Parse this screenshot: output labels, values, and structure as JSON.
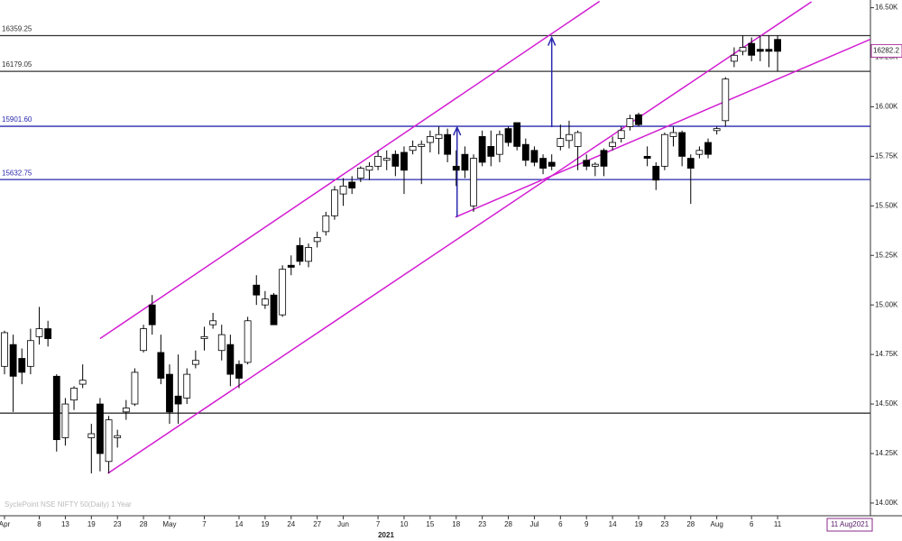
{
  "chart_data": {
    "type": "candlestick",
    "x_label": "2021",
    "watermark": "SyclePoint NSE NIFTY 50(Daily) 1 Year",
    "last_price": 16282.2,
    "date_box": "11 Aug2021",
    "categories": [
      "Apr",
      null,
      null,
      null,
      "8",
      null,
      null,
      "13",
      null,
      null,
      "19",
      null,
      null,
      "23",
      null,
      null,
      "28",
      null,
      null,
      "May",
      null,
      null,
      null,
      "7",
      null,
      null,
      null,
      "14",
      null,
      null,
      "19",
      null,
      null,
      "24",
      null,
      null,
      "27",
      null,
      null,
      "Jun",
      null,
      null,
      null,
      "7",
      null,
      null,
      "10",
      null,
      null,
      "15",
      null,
      null,
      "18",
      null,
      null,
      "23",
      null,
      null,
      "28",
      null,
      null,
      "Jul",
      null,
      null,
      "6",
      null,
      null,
      "9",
      null,
      null,
      "14",
      null,
      null,
      "19",
      null,
      null,
      "23",
      null,
      null,
      "28",
      null,
      null,
      "Aug",
      null,
      null,
      null,
      "6",
      null,
      null,
      "11"
    ],
    "open": [
      14690,
      14800,
      14730,
      14690,
      14840,
      14880,
      14640,
      14330,
      14520,
      14600,
      14330,
      14500,
      14210,
      14330,
      14460,
      14500,
      14770,
      15000,
      14760,
      14650,
      14540,
      14530,
      14700,
      14830,
      14900,
      14770,
      14800,
      14700,
      14710,
      15100,
      15000,
      15050,
      14950,
      15200,
      15300,
      15220,
      15320,
      15370,
      15450,
      15560,
      15620,
      15640,
      15680,
      15700,
      15730,
      15760,
      15770,
      15780,
      15800,
      15820,
      15840,
      15860,
      15700,
      15760,
      15500,
      15850,
      15800,
      15760,
      15890,
      15920,
      15810,
      15780,
      15740,
      15720,
      15800,
      15830,
      15800,
      15730,
      15700,
      15780,
      15800,
      15840,
      15900,
      15960,
      15750,
      15700,
      15700,
      15850,
      15870,
      15740,
      15760,
      15820,
      15880,
      15930,
      16230,
      16280,
      16320,
      16290,
      16290,
      16340
    ],
    "high": [
      14870,
      14850,
      14780,
      14880,
      14990,
      14920,
      14650,
      14530,
      14590,
      14700,
      14400,
      14530,
      14440,
      14370,
      14520,
      14680,
      14900,
      15050,
      14850,
      14700,
      14750,
      14680,
      14770,
      14890,
      14960,
      14900,
      14850,
      14720,
      14940,
      15150,
      15070,
      15060,
      15200,
      15250,
      15340,
      15310,
      15370,
      15470,
      15600,
      15640,
      15650,
      15700,
      15720,
      15780,
      15780,
      15780,
      15800,
      15830,
      15830,
      15880,
      15900,
      15890,
      15780,
      15800,
      15760,
      15880,
      15880,
      15880,
      15900,
      15920,
      15840,
      15800,
      15760,
      15760,
      15910,
      15930,
      15880,
      15760,
      15720,
      15790,
      15850,
      15900,
      15960,
      15970,
      15800,
      15720,
      15870,
      15900,
      15880,
      15760,
      15800,
      15840,
      15900,
      16150,
      16300,
      16360,
      16350,
      16360,
      16360,
      16360
    ],
    "low": [
      14650,
      14460,
      14600,
      14650,
      14800,
      14790,
      14260,
      14290,
      14470,
      14580,
      14150,
      14160,
      14150,
      14280,
      14420,
      14490,
      14760,
      14850,
      14600,
      14400,
      14400,
      14500,
      14680,
      14770,
      14880,
      14720,
      14590,
      14580,
      14700,
      15000,
      14980,
      14900,
      14940,
      15150,
      15200,
      15190,
      15290,
      15350,
      15430,
      15500,
      15560,
      15620,
      15630,
      15680,
      15680,
      15650,
      15560,
      15760,
      15610,
      15770,
      15760,
      15720,
      15600,
      15640,
      15470,
      15700,
      15700,
      15720,
      15800,
      15780,
      15700,
      15700,
      15660,
      15680,
      15780,
      15790,
      15680,
      15680,
      15650,
      15650,
      15780,
      15820,
      15880,
      15900,
      15700,
      15580,
      15680,
      15800,
      15700,
      15510,
      15740,
      15740,
      15860,
      15900,
      16200,
      16260,
      16230,
      16230,
      16200,
      16180
    ],
    "close": [
      14860,
      14640,
      14660,
      14820,
      14880,
      14830,
      14320,
      14500,
      14580,
      14620,
      14350,
      14250,
      14420,
      14340,
      14480,
      14660,
      14880,
      14900,
      14630,
      14460,
      14500,
      14650,
      14720,
      14840,
      14920,
      14850,
      14650,
      14630,
      14920,
      15050,
      15030,
      14900,
      15180,
      15190,
      15220,
      15290,
      15340,
      15450,
      15580,
      15600,
      15590,
      15690,
      15700,
      15750,
      15740,
      15700,
      15680,
      15800,
      15810,
      15850,
      15860,
      15760,
      15680,
      15680,
      15740,
      15720,
      15750,
      15860,
      15820,
      15800,
      15730,
      15720,
      15690,
      15700,
      15840,
      15860,
      15870,
      15700,
      15710,
      15700,
      15820,
      15880,
      15940,
      15910,
      15740,
      15630,
      15860,
      15870,
      15750,
      15690,
      15780,
      15760,
      15890,
      16140,
      16260,
      16300,
      16260,
      16280,
      16280,
      16280
    ],
    "up_color": "#ffffff",
    "down_color": "#000000",
    "ylim": [
      13936,
      16539
    ],
    "yticks": [
      {
        "value": 14000,
        "label": "14.00K"
      },
      {
        "value": 14250,
        "label": "14.25K"
      },
      {
        "value": 14500,
        "label": "14.50K"
      },
      {
        "value": 14750,
        "label": "14.75K"
      },
      {
        "value": 15000,
        "label": "15.00K"
      },
      {
        "value": 15250,
        "label": "15.25K"
      },
      {
        "value": 15500,
        "label": "15.50K"
      },
      {
        "value": 15750,
        "label": "15.75K"
      },
      {
        "value": 16000,
        "label": "16.00K"
      },
      {
        "value": 16250,
        "label": "16.25K"
      },
      {
        "value": 16500,
        "label": "16.50K"
      }
    ],
    "hlines": [
      {
        "value": 16359.25,
        "label": "16359.25",
        "color": "#333333"
      },
      {
        "value": 16179.05,
        "label": "16179.05",
        "color": "#333333"
      },
      {
        "value": 15901.6,
        "label": "15901.60",
        "color": "#2a2ab0"
      },
      {
        "value": 15632.75,
        "label": "15632.75",
        "color": "#2a2ab0"
      },
      {
        "value": 14454,
        "color": "#333333"
      }
    ],
    "trendlines": [
      {
        "x": [
          11.0,
          68.5
        ],
        "y": [
          14830,
          16532
        ],
        "color": "#d21ed2"
      },
      {
        "x": [
          11.9,
          92.9
        ],
        "y": [
          14150,
          16530
        ],
        "color": "#d21ed2"
      },
      {
        "x": [
          51.9,
          99.7
        ],
        "y": [
          15443,
          16341
        ],
        "color": "#d21ed2"
      }
    ],
    "arrows": [
      {
        "x": 52.1,
        "y": [
          15443,
          15897
        ],
        "color": "#2a2ab0"
      },
      {
        "x": 63.0,
        "y": [
          15897,
          16350
        ],
        "color": "#2a2ab0"
      }
    ]
  }
}
